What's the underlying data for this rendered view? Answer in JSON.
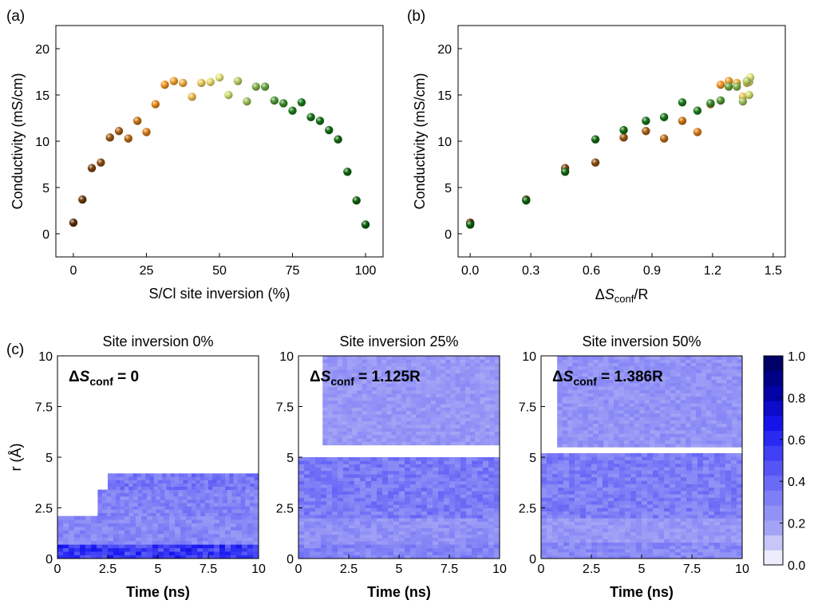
{
  "panels": {
    "a_letter": "(a)",
    "b_letter": "(b)",
    "c_letter": "(c)"
  },
  "chart_data": [
    {
      "id": "a",
      "type": "scatter",
      "xlabel": "S/Cl site inversion (%)",
      "ylabel": "Conductivity (mS/cm)",
      "xlim": [
        -6,
        106
      ],
      "ylim": [
        -2.5,
        22.5
      ],
      "xticks": [
        "0",
        "25",
        "50",
        "75",
        "100"
      ],
      "xtick_values": [
        0,
        25,
        50,
        75,
        100
      ],
      "yticks": [
        "0",
        "5",
        "10",
        "15",
        "20"
      ],
      "ytick_values": [
        0,
        5,
        10,
        15,
        20
      ],
      "points": [
        {
          "x": 0,
          "y": 1.2
        },
        {
          "x": 3.1,
          "y": 3.7
        },
        {
          "x": 6.3,
          "y": 7.1
        },
        {
          "x": 9.4,
          "y": 7.7
        },
        {
          "x": 12.5,
          "y": 10.4
        },
        {
          "x": 15.6,
          "y": 11.1
        },
        {
          "x": 18.8,
          "y": 10.3
        },
        {
          "x": 21.9,
          "y": 12.2
        },
        {
          "x": 25.0,
          "y": 11.0
        },
        {
          "x": 28.1,
          "y": 14.0
        },
        {
          "x": 31.3,
          "y": 16.1
        },
        {
          "x": 34.4,
          "y": 16.5
        },
        {
          "x": 37.5,
          "y": 16.3
        },
        {
          "x": 40.6,
          "y": 14.8
        },
        {
          "x": 43.8,
          "y": 16.3
        },
        {
          "x": 46.9,
          "y": 16.4
        },
        {
          "x": 50.0,
          "y": 16.9
        },
        {
          "x": 53.1,
          "y": 15.0
        },
        {
          "x": 56.3,
          "y": 16.5
        },
        {
          "x": 59.4,
          "y": 14.3
        },
        {
          "x": 62.5,
          "y": 15.9
        },
        {
          "x": 65.6,
          "y": 15.9
        },
        {
          "x": 68.8,
          "y": 14.4
        },
        {
          "x": 71.9,
          "y": 14.1
        },
        {
          "x": 75.0,
          "y": 13.3
        },
        {
          "x": 78.1,
          "y": 14.2
        },
        {
          "x": 81.3,
          "y": 12.6
        },
        {
          "x": 84.4,
          "y": 12.2
        },
        {
          "x": 87.5,
          "y": 11.2
        },
        {
          "x": 90.6,
          "y": 10.2
        },
        {
          "x": 93.8,
          "y": 6.7
        },
        {
          "x": 96.9,
          "y": 3.6
        },
        {
          "x": 100,
          "y": 1.0
        }
      ]
    },
    {
      "id": "b",
      "type": "scatter",
      "xlabel_prefix": "Δ",
      "xlabel_italic": "S",
      "xlabel_sub": "conf",
      "xlabel_suffix": "/R",
      "ylabel": "Conductivity (mS/cm)",
      "xlim": [
        -0.06,
        1.56
      ],
      "ylim": [
        -2.5,
        22.5
      ],
      "xticks": [
        "0.0",
        "0.3",
        "0.6",
        "0.9",
        "1.2",
        "1.5"
      ],
      "xtick_values": [
        0,
        0.3,
        0.6,
        0.9,
        1.2,
        1.5
      ],
      "yticks": [
        "0",
        "5",
        "10",
        "15",
        "20"
      ],
      "ytick_values": [
        0,
        5,
        10,
        15,
        20
      ],
      "points": [
        {
          "x": 0.0,
          "y": 1.2
        },
        {
          "x": 0.277,
          "y": 3.7
        },
        {
          "x": 0.47,
          "y": 7.1
        },
        {
          "x": 0.62,
          "y": 7.7
        },
        {
          "x": 0.76,
          "y": 10.4
        },
        {
          "x": 0.87,
          "y": 11.1
        },
        {
          "x": 0.96,
          "y": 10.3
        },
        {
          "x": 1.05,
          "y": 12.2
        },
        {
          "x": 1.125,
          "y": 11.0
        },
        {
          "x": 1.19,
          "y": 14.0
        },
        {
          "x": 1.24,
          "y": 16.1
        },
        {
          "x": 1.28,
          "y": 16.5
        },
        {
          "x": 1.32,
          "y": 16.3
        },
        {
          "x": 1.35,
          "y": 14.8
        },
        {
          "x": 1.37,
          "y": 16.3
        },
        {
          "x": 1.381,
          "y": 16.4
        },
        {
          "x": 1.386,
          "y": 16.9
        },
        {
          "x": 1.381,
          "y": 15.0
        },
        {
          "x": 1.37,
          "y": 16.5
        },
        {
          "x": 1.35,
          "y": 14.3
        },
        {
          "x": 1.32,
          "y": 15.9
        },
        {
          "x": 1.28,
          "y": 15.9
        },
        {
          "x": 1.24,
          "y": 14.4
        },
        {
          "x": 1.19,
          "y": 14.1
        },
        {
          "x": 1.125,
          "y": 13.3
        },
        {
          "x": 1.05,
          "y": 14.2
        },
        {
          "x": 0.96,
          "y": 12.6
        },
        {
          "x": 0.87,
          "y": 12.2
        },
        {
          "x": 0.76,
          "y": 11.2
        },
        {
          "x": 0.62,
          "y": 10.2
        },
        {
          "x": 0.47,
          "y": 6.7
        },
        {
          "x": 0.277,
          "y": 3.6
        },
        {
          "x": 0.0,
          "y": 1.0
        }
      ]
    },
    {
      "id": "c1",
      "type": "heatmap",
      "title": "Site inversion 0%",
      "annotation_prefix": "Δ",
      "annotation_italic": "S",
      "annotation_sub": "conf",
      "annotation_value": " = 0",
      "xlabel": "Time (ns)",
      "ylabel": "r (Å)",
      "xlim": [
        0,
        10
      ],
      "ylim": [
        0,
        10
      ],
      "xticks": [
        "0",
        "2.5",
        "5",
        "7.5",
        "10"
      ],
      "xtick_values": [
        0,
        2.5,
        5,
        7.5,
        10
      ],
      "yticks": [
        "0",
        "2.5",
        "5",
        "7.5",
        "10"
      ],
      "ytick_values": [
        0,
        2.5,
        5,
        7.5,
        10
      ],
      "bands": [
        {
          "t_start": 0,
          "t_end": 10,
          "r_low": 0.0,
          "r_high": 0.7,
          "value": 0.55
        },
        {
          "t_start": 0,
          "t_end": 10,
          "r_low": 0.7,
          "r_high": 2.1,
          "value": 0.28
        },
        {
          "t_start": 2.0,
          "t_end": 10,
          "r_low": 2.1,
          "r_high": 3.4,
          "value": 0.3
        },
        {
          "t_start": 2.5,
          "t_end": 10,
          "r_low": 3.4,
          "r_high": 4.2,
          "value": 0.35
        }
      ]
    },
    {
      "id": "c2",
      "type": "heatmap",
      "title": "Site inversion 25%",
      "annotation_prefix": "Δ",
      "annotation_italic": "S",
      "annotation_sub": "conf",
      "annotation_value": " = 1.125R",
      "xlabel": "Time (ns)",
      "xlim": [
        0,
        10
      ],
      "ylim": [
        0,
        10
      ],
      "xticks": [
        "0",
        "2.5",
        "5",
        "7.5",
        "10"
      ],
      "xtick_values": [
        0,
        2.5,
        5,
        7.5,
        10
      ],
      "yticks": [
        "0",
        "2.5",
        "5",
        "7.5",
        "10"
      ],
      "ytick_values": [
        0,
        2.5,
        5,
        7.5,
        10
      ],
      "bands": [
        {
          "t_start": 0,
          "t_end": 10,
          "r_low": 0.0,
          "r_high": 0.7,
          "value": 0.3
        },
        {
          "t_start": 0,
          "t_end": 10,
          "r_low": 0.7,
          "r_high": 2.0,
          "value": 0.25
        },
        {
          "t_start": 0,
          "t_end": 10,
          "r_low": 2.0,
          "r_high": 5.0,
          "value": 0.33
        },
        {
          "t_start": 1.2,
          "t_end": 10,
          "r_low": 5.6,
          "r_high": 10.0,
          "value": 0.22
        }
      ]
    },
    {
      "id": "c3",
      "type": "heatmap",
      "title": "Site inversion 50%",
      "annotation_prefix": "Δ",
      "annotation_italic": "S",
      "annotation_sub": "conf",
      "annotation_value": " = 1.386R",
      "xlabel": "Time (ns)",
      "xlim": [
        0,
        10
      ],
      "ylim": [
        0,
        10
      ],
      "xticks": [
        "0",
        "2.5",
        "5",
        "7.5",
        "10"
      ],
      "xtick_values": [
        0,
        2.5,
        5,
        7.5,
        10
      ],
      "yticks": [
        "0",
        "2.5",
        "5",
        "7.5",
        "10"
      ],
      "ytick_values": [
        0,
        2.5,
        5,
        7.5,
        10
      ],
      "bands": [
        {
          "t_start": 0,
          "t_end": 10,
          "r_low": 0.0,
          "r_high": 0.8,
          "value": 0.28
        },
        {
          "t_start": 0,
          "t_end": 10,
          "r_low": 0.8,
          "r_high": 2.0,
          "value": 0.22
        },
        {
          "t_start": 0,
          "t_end": 10,
          "r_low": 2.0,
          "r_high": 5.2,
          "value": 0.32
        },
        {
          "t_start": 0.8,
          "t_end": 10,
          "r_low": 5.5,
          "r_high": 10.0,
          "value": 0.24
        }
      ]
    }
  ],
  "colorbar": {
    "ticks": [
      "0.0",
      "0.2",
      "0.4",
      "0.6",
      "0.8",
      "1.0"
    ],
    "tick_values": [
      0,
      0.2,
      0.4,
      0.6,
      0.8,
      1.0
    ],
    "range": [
      0,
      1
    ],
    "colors": [
      "#ffffff",
      "#a6a6f6",
      "#7b7bf6",
      "#4a4af6",
      "#1616f0",
      "#0000a0",
      "#00005a"
    ]
  },
  "colors": {
    "point_start": "#5a2e08",
    "point_mid_orange": "#f08a1a",
    "point_yellow": "#e6e67a",
    "point_green": "#1a7a1a",
    "point_end": "#0a5a0a"
  }
}
